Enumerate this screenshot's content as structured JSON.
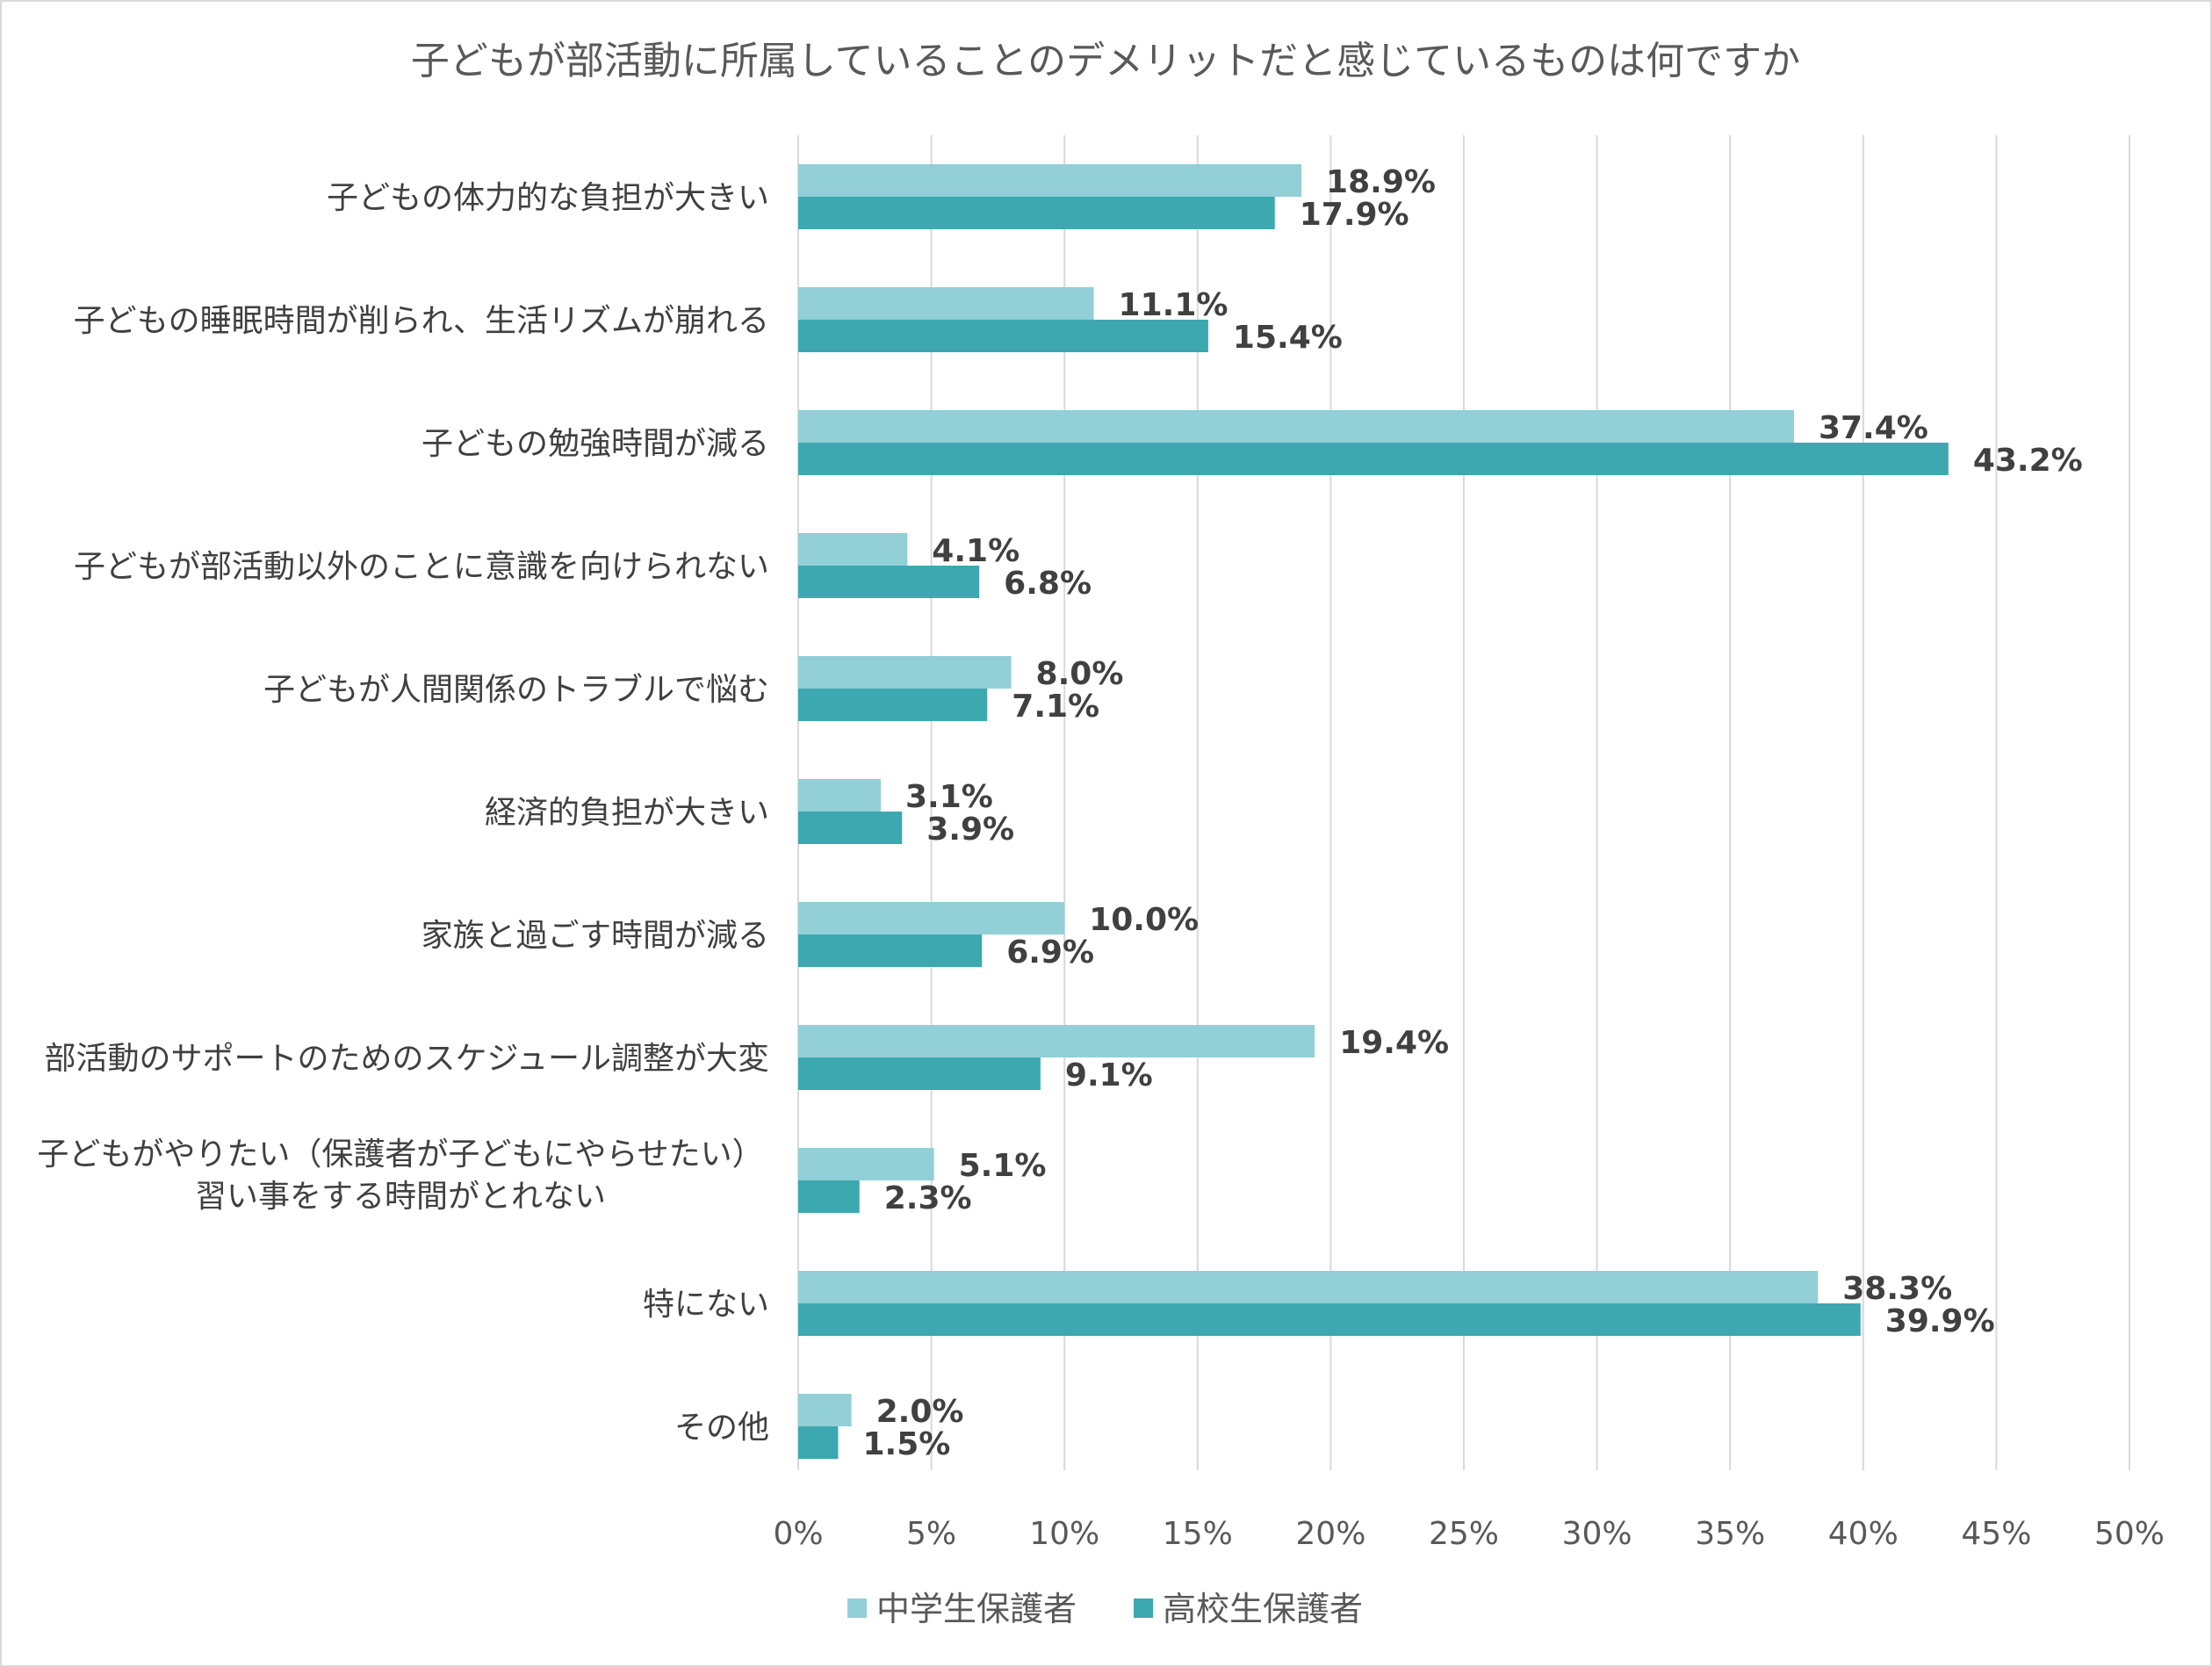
{
  "chart_data": {
    "type": "bar",
    "orientation": "horizontal",
    "title": "子どもが部活動に所属していることのデメリットだと感じているものは何ですか",
    "categories": [
      [
        "子どもの体力的な負担が大きい"
      ],
      [
        "子どもの睡眠時間が削られ、生活リズムが崩れる"
      ],
      [
        "子どもの勉強時間が減る"
      ],
      [
        "子どもが部活動以外のことに意識を向けられない"
      ],
      [
        "子どもが人間関係のトラブルで悩む"
      ],
      [
        "経済的負担が大きい"
      ],
      [
        "家族と過ごす時間が減る"
      ],
      [
        "部活動のサポートのためのスケジュール調整が大変"
      ],
      [
        "子どもがやりたい（保護者が子どもにやらせたい）",
        "習い事をする時間がとれない"
      ],
      [
        "特にない"
      ],
      [
        "その他"
      ]
    ],
    "series": [
      {
        "name": "中学生保護者",
        "color": "#92cfd6",
        "values": [
          18.9,
          11.1,
          37.4,
          4.1,
          8.0,
          3.1,
          10.0,
          19.4,
          5.1,
          38.3,
          2.0
        ],
        "labels": [
          "18.9%",
          "11.1%",
          "37.4%",
          "4.1%",
          "8.0%",
          "3.1%",
          "10.0%",
          "19.4%",
          "5.1%",
          "38.3%",
          "2.0%"
        ]
      },
      {
        "name": "高校生保護者",
        "color": "#3da8b0",
        "values": [
          17.9,
          15.4,
          43.2,
          6.8,
          7.1,
          3.9,
          6.9,
          9.1,
          2.3,
          39.9,
          1.5
        ],
        "labels": [
          "17.9%",
          "15.4%",
          "43.2%",
          "6.8%",
          "7.1%",
          "3.9%",
          "6.9%",
          "9.1%",
          "2.3%",
          "39.9%",
          "1.5%"
        ]
      }
    ],
    "xlim": [
      0,
      50
    ],
    "xticks": [
      0,
      5,
      10,
      15,
      20,
      25,
      30,
      35,
      40,
      45,
      50
    ],
    "xtick_labels": [
      "0%",
      "5%",
      "10%",
      "15%",
      "20%",
      "25%",
      "30%",
      "35%",
      "40%",
      "45%",
      "50%"
    ],
    "xlabel": "",
    "ylabel": "",
    "grid": true,
    "legend_position": "bottom",
    "gridline_color": "#d9d9d9"
  }
}
